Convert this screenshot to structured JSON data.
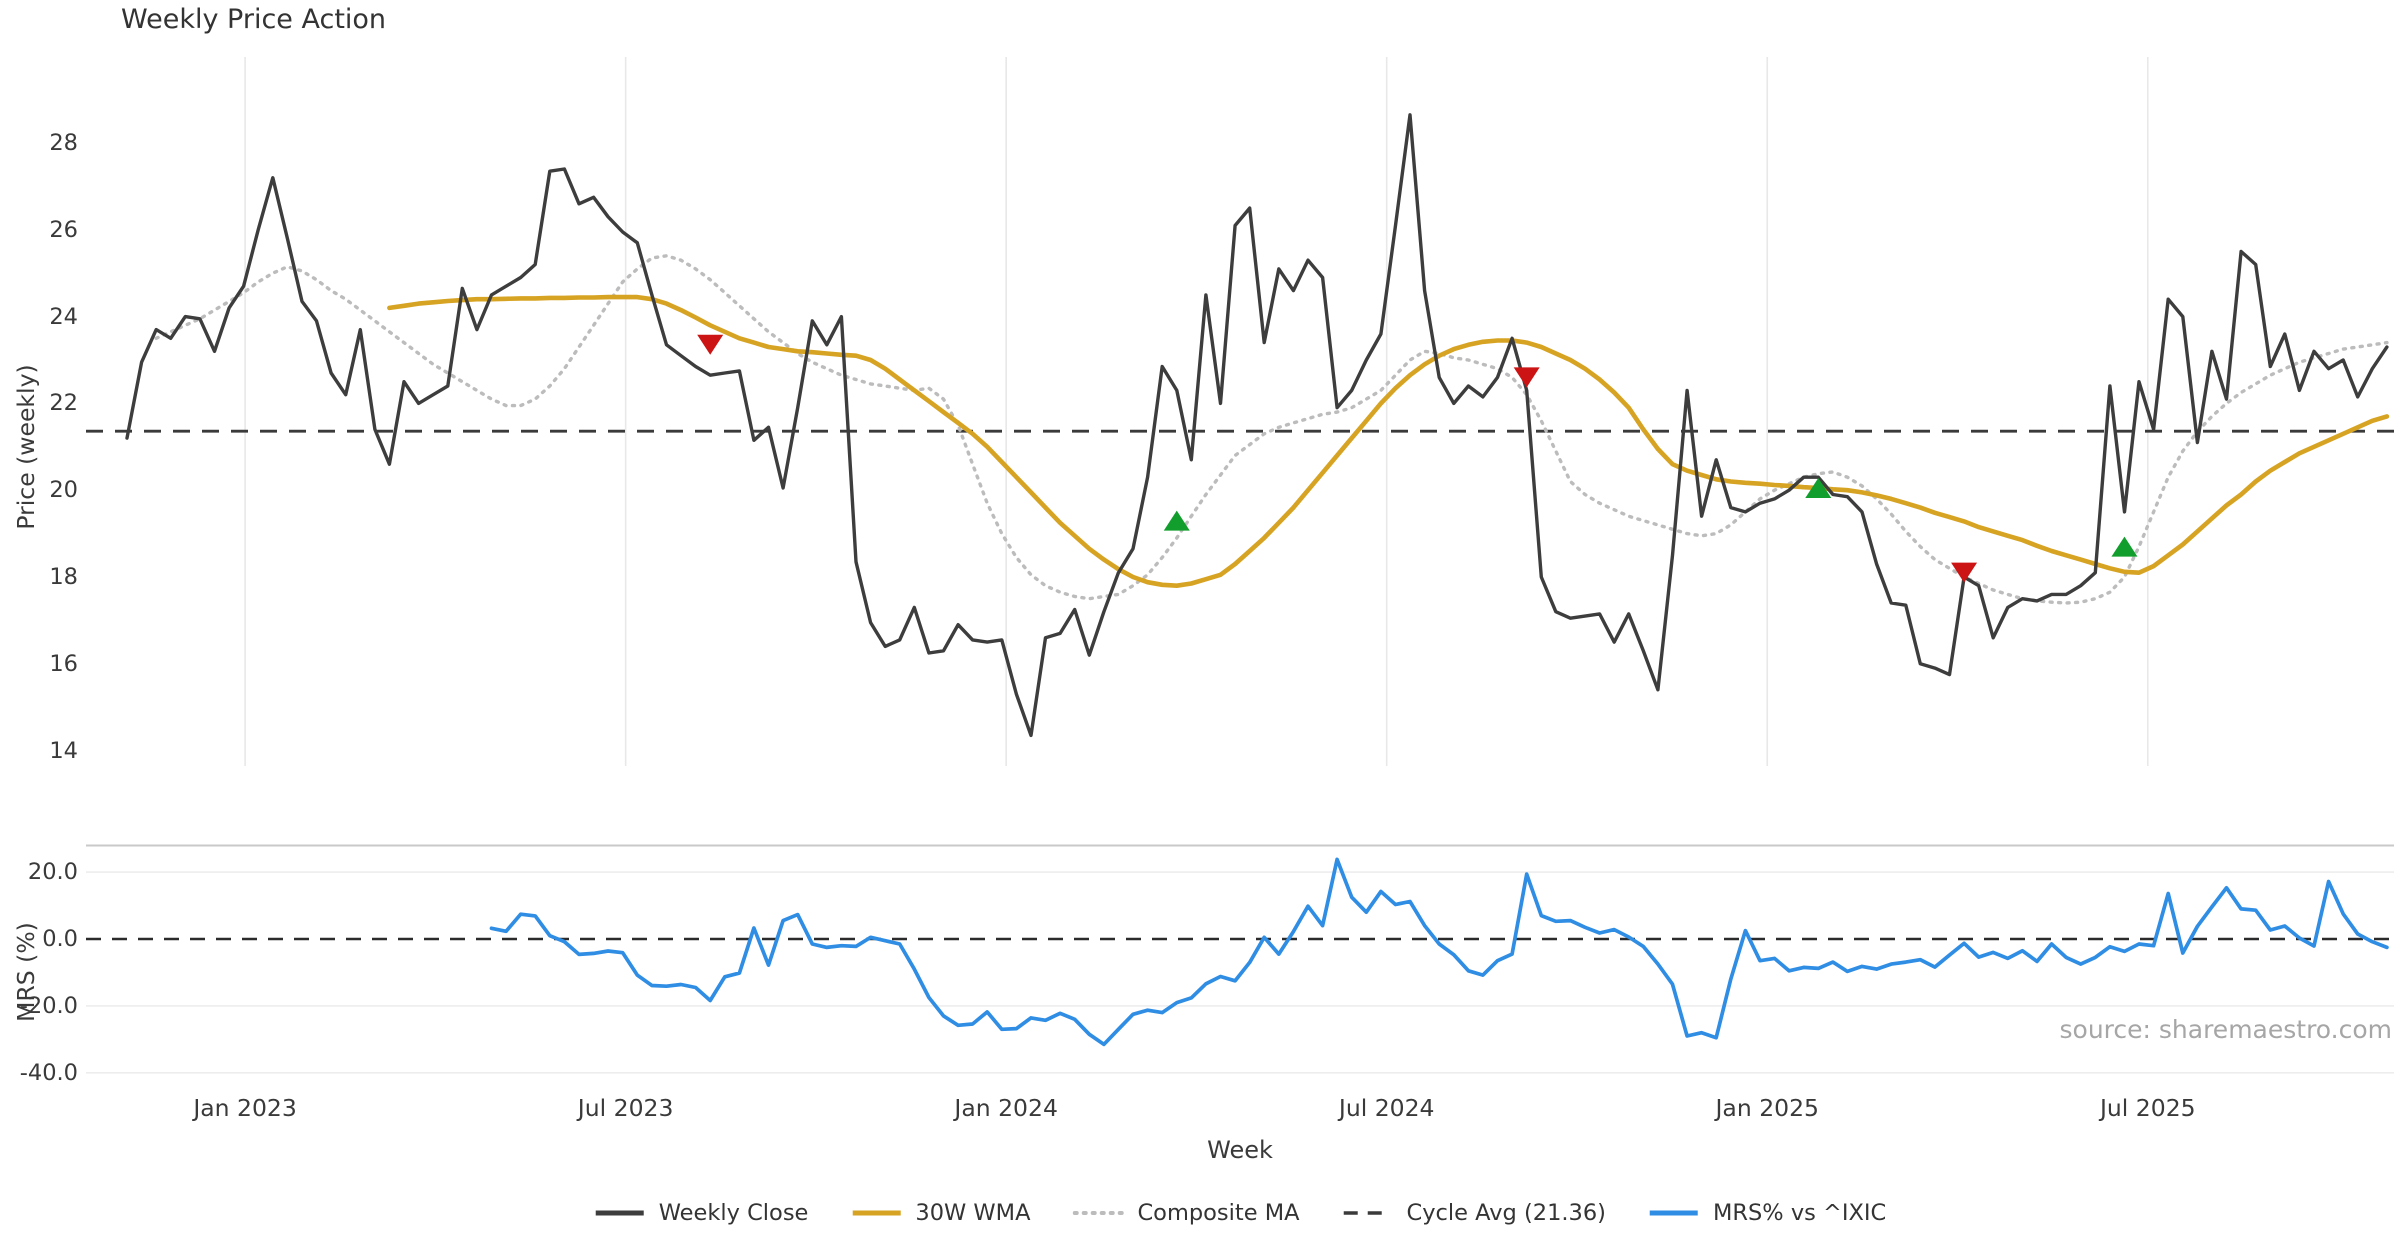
{
  "title": "Weekly Price Action",
  "source_note": "source: sharemaestro.com",
  "colors": {
    "weekly_close": "#3d3d3d",
    "wma_30w": "#d7a322",
    "composite_ma": "#bcbcbc",
    "cycle_avg": "#3a3a3a",
    "mrs": "#2f8de4",
    "sell_marker": "#cc1414",
    "buy_marker": "#129e2c",
    "gridline": "#e8e8e8",
    "panel_spine": "#c9c9c9",
    "text": "#3a3a3a",
    "source_text": "#a6a6a6"
  },
  "axes": {
    "price_axis_label": "Price (weekly)",
    "mrs_axis_label": "MRS (%)",
    "x_axis_label": "Week",
    "price_ticks": [
      {
        "label": "28",
        "value": 28
      },
      {
        "label": "26",
        "value": 26
      },
      {
        "label": "24",
        "value": 24
      },
      {
        "label": "22",
        "value": 22
      },
      {
        "label": "20",
        "value": 20
      },
      {
        "label": "18",
        "value": 18
      },
      {
        "label": "16",
        "value": 16
      },
      {
        "label": "14",
        "value": 14
      }
    ],
    "mrs_ticks": [
      {
        "label": "20.0",
        "value": 20
      },
      {
        "label": "0.0",
        "value": 0
      },
      {
        "label": "-20.0",
        "value": -20
      },
      {
        "label": "-40.0",
        "value": -40
      }
    ],
    "x_ticks": [
      {
        "label": "Jan 2023",
        "week": 8.1
      },
      {
        "label": "Jul 2023",
        "week": 34.2
      },
      {
        "label": "Jan 2024",
        "week": 60.3
      },
      {
        "label": "Jul 2024",
        "week": 86.4
      },
      {
        "label": "Jan 2025",
        "week": 112.5
      },
      {
        "label": "Jul 2025",
        "week": 138.6
      }
    ]
  },
  "legend": {
    "items": [
      {
        "label": "Weekly Close",
        "swatch": "solid",
        "color_key": "weekly_close"
      },
      {
        "label": "30W WMA",
        "swatch": "solid",
        "color_key": "wma_30w"
      },
      {
        "label": "Composite MA",
        "swatch": "dotted",
        "color_key": "composite_ma"
      },
      {
        "label": "Cycle Avg (21.36)",
        "swatch": "dashed",
        "color_key": "cycle_avg"
      },
      {
        "label": "MRS% vs ^IXIC",
        "swatch": "solid",
        "color_key": "mrs"
      }
    ]
  },
  "chart_data": [
    {
      "type": "line",
      "panel": "price",
      "ylabel": "Price (weekly)",
      "ylim": [
        13.8,
        30.0
      ],
      "grid": "vertical-only",
      "cycle_avg_value": 21.36,
      "weeks_total": 156,
      "series": [
        {
          "name": "Weekly Close",
          "start_week": 0,
          "values": [
            21.2,
            22.95,
            23.7,
            23.5,
            24.0,
            23.95,
            23.2,
            24.2,
            24.7,
            26.0,
            27.2,
            25.8,
            24.35,
            23.9,
            22.7,
            22.2,
            23.7,
            21.4,
            20.6,
            22.5,
            22.0,
            22.2,
            22.4,
            24.65,
            23.7,
            24.5,
            24.7,
            24.9,
            25.2,
            27.35,
            27.4,
            26.6,
            26.75,
            26.3,
            25.95,
            25.7,
            24.5,
            23.35,
            23.1,
            22.85,
            22.65,
            22.7,
            22.75,
            21.15,
            21.45,
            20.05,
            21.9,
            23.9,
            23.35,
            24.0,
            18.35,
            16.95,
            16.4,
            16.55,
            17.3,
            16.25,
            16.3,
            16.9,
            16.55,
            16.5,
            16.55,
            15.3,
            14.35,
            16.6,
            16.7,
            17.25,
            16.2,
            17.2,
            18.1,
            18.65,
            20.3,
            22.85,
            22.3,
            20.7,
            24.5,
            22.0,
            26.1,
            26.5,
            23.4,
            25.1,
            24.6,
            25.3,
            24.9,
            21.9,
            22.3,
            23.0,
            23.6,
            26.1,
            28.65,
            24.6,
            22.6,
            22.0,
            22.4,
            22.15,
            22.6,
            23.5,
            22.3,
            18.0,
            17.2,
            17.05,
            17.1,
            17.15,
            16.5,
            17.15,
            16.3,
            15.4,
            18.5,
            22.3,
            19.4,
            20.7,
            19.6,
            19.5,
            19.7,
            19.8,
            20.0,
            20.3,
            20.3,
            19.9,
            19.85,
            19.5,
            18.3,
            17.4,
            17.35,
            16.0,
            15.9,
            15.75,
            18.0,
            17.8,
            16.6,
            17.3,
            17.5,
            17.45,
            17.6,
            17.6,
            17.8,
            18.1,
            22.4,
            19.5,
            22.5,
            21.4,
            24.4,
            24.0,
            21.1,
            23.2,
            22.1,
            25.5,
            25.2,
            22.85,
            23.6,
            22.3,
            23.2,
            22.8,
            23.0,
            22.15,
            22.8,
            23.3
          ]
        },
        {
          "name": "30W WMA",
          "start_week": 18,
          "values": [
            24.2,
            24.25,
            24.3,
            24.33,
            24.36,
            24.38,
            24.4,
            24.4,
            24.41,
            24.42,
            24.42,
            24.43,
            24.43,
            24.44,
            24.44,
            24.45,
            24.45,
            24.45,
            24.4,
            24.3,
            24.15,
            23.98,
            23.8,
            23.65,
            23.5,
            23.4,
            23.3,
            23.25,
            23.2,
            23.18,
            23.15,
            23.12,
            23.1,
            23.0,
            22.8,
            22.55,
            22.3,
            22.05,
            21.8,
            21.55,
            21.3,
            21.0,
            20.65,
            20.3,
            19.95,
            19.6,
            19.25,
            18.95,
            18.65,
            18.4,
            18.18,
            18.0,
            17.88,
            17.82,
            17.8,
            17.85,
            17.95,
            18.05,
            18.3,
            18.6,
            18.9,
            19.25,
            19.6,
            20.0,
            20.4,
            20.8,
            21.2,
            21.6,
            22.0,
            22.35,
            22.65,
            22.9,
            23.1,
            23.25,
            23.35,
            23.42,
            23.45,
            23.45,
            23.4,
            23.3,
            23.15,
            23.0,
            22.8,
            22.55,
            22.25,
            21.9,
            21.4,
            20.95,
            20.6,
            20.45,
            20.35,
            20.25,
            20.2,
            20.17,
            20.15,
            20.12,
            20.1,
            20.07,
            20.05,
            20.02,
            20.0,
            19.95,
            19.88,
            19.8,
            19.7,
            19.6,
            19.48,
            19.38,
            19.28,
            19.15,
            19.05,
            18.95,
            18.85,
            18.72,
            18.6,
            18.5,
            18.4,
            18.3,
            18.2,
            18.12,
            18.1,
            18.25,
            18.5,
            18.75,
            19.05,
            19.35,
            19.65,
            19.9,
            20.2,
            20.45,
            20.65,
            20.85,
            21.0,
            21.15,
            21.3,
            21.45,
            21.6,
            21.7
          ]
        },
        {
          "name": "Composite MA",
          "start_week": 2,
          "values": [
            23.5,
            23.65,
            23.8,
            23.95,
            24.15,
            24.35,
            24.55,
            24.8,
            25.0,
            25.15,
            25.05,
            24.85,
            24.6,
            24.4,
            24.15,
            23.9,
            23.65,
            23.4,
            23.15,
            22.9,
            22.7,
            22.5,
            22.3,
            22.1,
            21.95,
            21.95,
            22.1,
            22.4,
            22.8,
            23.3,
            23.8,
            24.3,
            24.8,
            25.1,
            25.35,
            25.4,
            25.3,
            25.1,
            24.85,
            24.55,
            24.25,
            23.95,
            23.65,
            23.4,
            23.15,
            22.95,
            22.8,
            22.65,
            22.55,
            22.45,
            22.4,
            22.35,
            22.3,
            22.35,
            22.1,
            21.5,
            20.6,
            19.7,
            19.0,
            18.45,
            18.05,
            17.8,
            17.65,
            17.55,
            17.5,
            17.55,
            17.6,
            17.8,
            18.05,
            18.45,
            18.9,
            19.4,
            19.9,
            20.35,
            20.8,
            21.05,
            21.3,
            21.45,
            21.55,
            21.65,
            21.75,
            21.8,
            21.9,
            22.1,
            22.3,
            22.65,
            23.0,
            23.2,
            23.15,
            23.05,
            23.0,
            22.9,
            22.8,
            22.6,
            22.2,
            21.6,
            20.9,
            20.2,
            19.9,
            19.7,
            19.55,
            19.4,
            19.3,
            19.2,
            19.1,
            19.0,
            18.95,
            19.0,
            19.2,
            19.5,
            19.8,
            20.0,
            20.15,
            20.3,
            20.38,
            20.42,
            20.3,
            20.1,
            19.8,
            19.45,
            19.05,
            18.7,
            18.4,
            18.2,
            18.0,
            17.85,
            17.7,
            17.6,
            17.5,
            17.45,
            17.42,
            17.4,
            17.42,
            17.5,
            17.65,
            18.0,
            18.7,
            19.5,
            20.3,
            20.9,
            21.35,
            21.7,
            22.0,
            22.25,
            22.45,
            22.65,
            22.8,
            22.95,
            23.05,
            23.15,
            23.25,
            23.3,
            23.35,
            23.4
          ]
        }
      ],
      "markers": {
        "sell": [
          {
            "week": 40,
            "value": 23.35
          },
          {
            "week": 96,
            "value": 22.6
          },
          {
            "week": 126,
            "value": 18.1
          }
        ],
        "buy": [
          {
            "week": 72,
            "value": 19.3
          },
          {
            "week": 116,
            "value": 20.05
          },
          {
            "week": 137,
            "value": 18.7
          }
        ]
      }
    },
    {
      "type": "line",
      "panel": "mrs",
      "ylabel": "MRS (%)",
      "ylim": [
        -44,
        28
      ],
      "zero_line": 0,
      "series": [
        {
          "name": "MRS% vs ^IXIC",
          "start_week": 25,
          "values": [
            3.2,
            2.3,
            7.4,
            6.9,
            1.0,
            -0.8,
            -4.6,
            -4.3,
            -3.6,
            -4.1,
            -10.8,
            -13.9,
            -14.1,
            -13.6,
            -14.5,
            -18.4,
            -11.3,
            -10.2,
            3.3,
            -7.8,
            5.5,
            7.3,
            -1.5,
            -2.5,
            -2.0,
            -2.2,
            0.5,
            -0.5,
            -1.5,
            -9.0,
            -17.5,
            -23.0,
            -25.8,
            -25.4,
            -21.8,
            -27.0,
            -26.8,
            -23.6,
            -24.3,
            -22.2,
            -24.0,
            -28.5,
            -31.5,
            -27.0,
            -22.5,
            -21.3,
            -22.0,
            -19.0,
            -17.6,
            -13.4,
            -11.2,
            -12.5,
            -7.0,
            0.5,
            -4.5,
            2.2,
            9.8,
            4.0,
            23.8,
            12.5,
            8.0,
            14.2,
            10.3,
            11.2,
            4.0,
            -1.5,
            -4.7,
            -9.5,
            -10.8,
            -6.5,
            -4.5,
            19.4,
            7.0,
            5.3,
            5.5,
            3.5,
            1.8,
            2.8,
            0.6,
            -2.2,
            -7.5,
            -13.5,
            -29.0,
            -28.0,
            -29.5,
            -12.0,
            2.5,
            -6.5,
            -5.8,
            -9.5,
            -8.5,
            -8.8,
            -6.9,
            -9.7,
            -8.2,
            -9.0,
            -7.5,
            -6.9,
            -6.2,
            -8.4,
            -4.8,
            -1.3,
            -5.4,
            -4.0,
            -5.8,
            -3.5,
            -6.7,
            -1.5,
            -5.5,
            -7.5,
            -5.5,
            -2.3,
            -3.7,
            -1.5,
            -2.0,
            13.6,
            -4.2,
            3.8,
            9.6,
            15.3,
            9.0,
            8.6,
            2.7,
            3.9,
            0.3,
            -2.1,
            17.2,
            7.5,
            1.5,
            -0.8,
            -2.5
          ]
        }
      ]
    }
  ]
}
